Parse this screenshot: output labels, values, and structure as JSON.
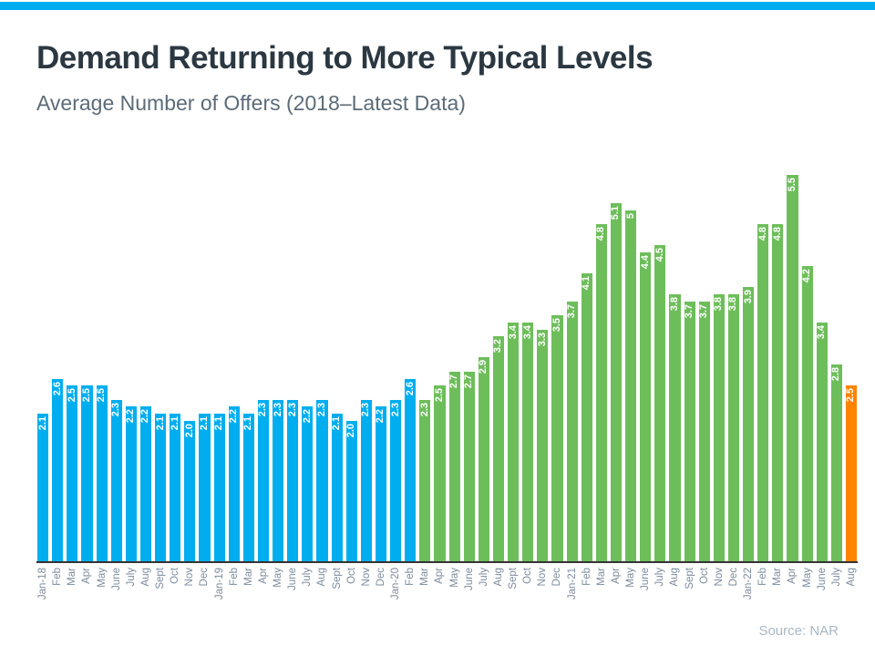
{
  "page": {
    "title": "Demand Returning to More Typical Levels",
    "subtitle": "Average Number of Offers (2018–Latest Data)",
    "source": "Source: NAR",
    "accent_strip_color": "#00aeef"
  },
  "chart_data": {
    "type": "bar",
    "title": "Demand Returning to More Typical Levels",
    "subtitle": "Average Number of Offers (2018–Latest Data)",
    "xlabel": "",
    "ylabel": "",
    "ylim": [
      0,
      5.5
    ],
    "grid": false,
    "legend": "none",
    "value_labels": "white, bold, rotated 90°, inside top of each bar",
    "xtick_rotation": 90,
    "categories": [
      "Jan-18",
      "Feb",
      "Mar",
      "Apr",
      "May",
      "June",
      "July",
      "Aug",
      "Sept",
      "Oct",
      "Nov",
      "Dec",
      "Jan-19",
      "Feb",
      "Mar",
      "Apr",
      "May",
      "June",
      "July",
      "Aug",
      "Sept",
      "Oct",
      "Nov",
      "Dec",
      "Jan-20",
      "Feb",
      "Mar",
      "Apr",
      "May",
      "June",
      "July",
      "Aug",
      "Sept",
      "Oct",
      "Nov",
      "Dec",
      "Jan-21",
      "Feb",
      "Mar",
      "Apr",
      "May",
      "June",
      "July",
      "Aug",
      "Sept",
      "Oct",
      "Nov",
      "Dec",
      "Jan-22",
      "Feb",
      "Mar",
      "Apr",
      "May",
      "June",
      "July",
      "Aug"
    ],
    "values": [
      2.1,
      2.6,
      2.5,
      2.5,
      2.5,
      2.3,
      2.2,
      2.2,
      2.1,
      2.1,
      2.0,
      2.1,
      2.1,
      2.2,
      2.1,
      2.3,
      2.3,
      2.3,
      2.2,
      2.3,
      2.1,
      2.0,
      2.3,
      2.2,
      2.3,
      2.6,
      2.3,
      2.5,
      2.7,
      2.7,
      2.9,
      3.2,
      3.4,
      3.4,
      3.3,
      3.5,
      3.7,
      4.1,
      4.8,
      5.1,
      5,
      4.4,
      4.5,
      3.8,
      3.7,
      3.7,
      3.8,
      3.8,
      3.9,
      4.8,
      4.8,
      5.5,
      4.2,
      3.4,
      2.8,
      2.5
    ],
    "value_display_labels": [
      "2.1",
      "2.6",
      "2.5",
      "2.5",
      "2.5",
      "2.3",
      "2.2",
      "2.2",
      "2.1",
      "2.1",
      "2.0",
      "2.1",
      "2.1",
      "2.2",
      "2.1",
      "2.3",
      "2.3",
      "2.3",
      "2.2",
      "2.3",
      "2.1",
      "2.0",
      "2.3",
      "2.2",
      "2.3",
      "2.6",
      "2.3",
      "2.5",
      "2.7",
      "2.7",
      "2.9",
      "3.2",
      "3.4",
      "3.4",
      "3.3",
      "3.5",
      "3.7",
      "4.1",
      "4.8",
      "5.1",
      "5",
      "4.4",
      "4.5",
      "3.8",
      "3.7",
      "3.7",
      "3.8",
      "3.8",
      "3.9",
      "4.8",
      "4.8",
      "5.5",
      "4.2",
      "3.4",
      "2.8",
      "2.5"
    ],
    "color_segments": [
      {
        "count": 26,
        "color": "#00aeef",
        "range": "Jan-18 to Feb-20"
      },
      {
        "count": 29,
        "color": "#6dbe5a",
        "range": "Mar-20 to July-22"
      },
      {
        "count": 1,
        "color": "#ff8300",
        "range": "Aug-22 (latest)"
      }
    ]
  }
}
